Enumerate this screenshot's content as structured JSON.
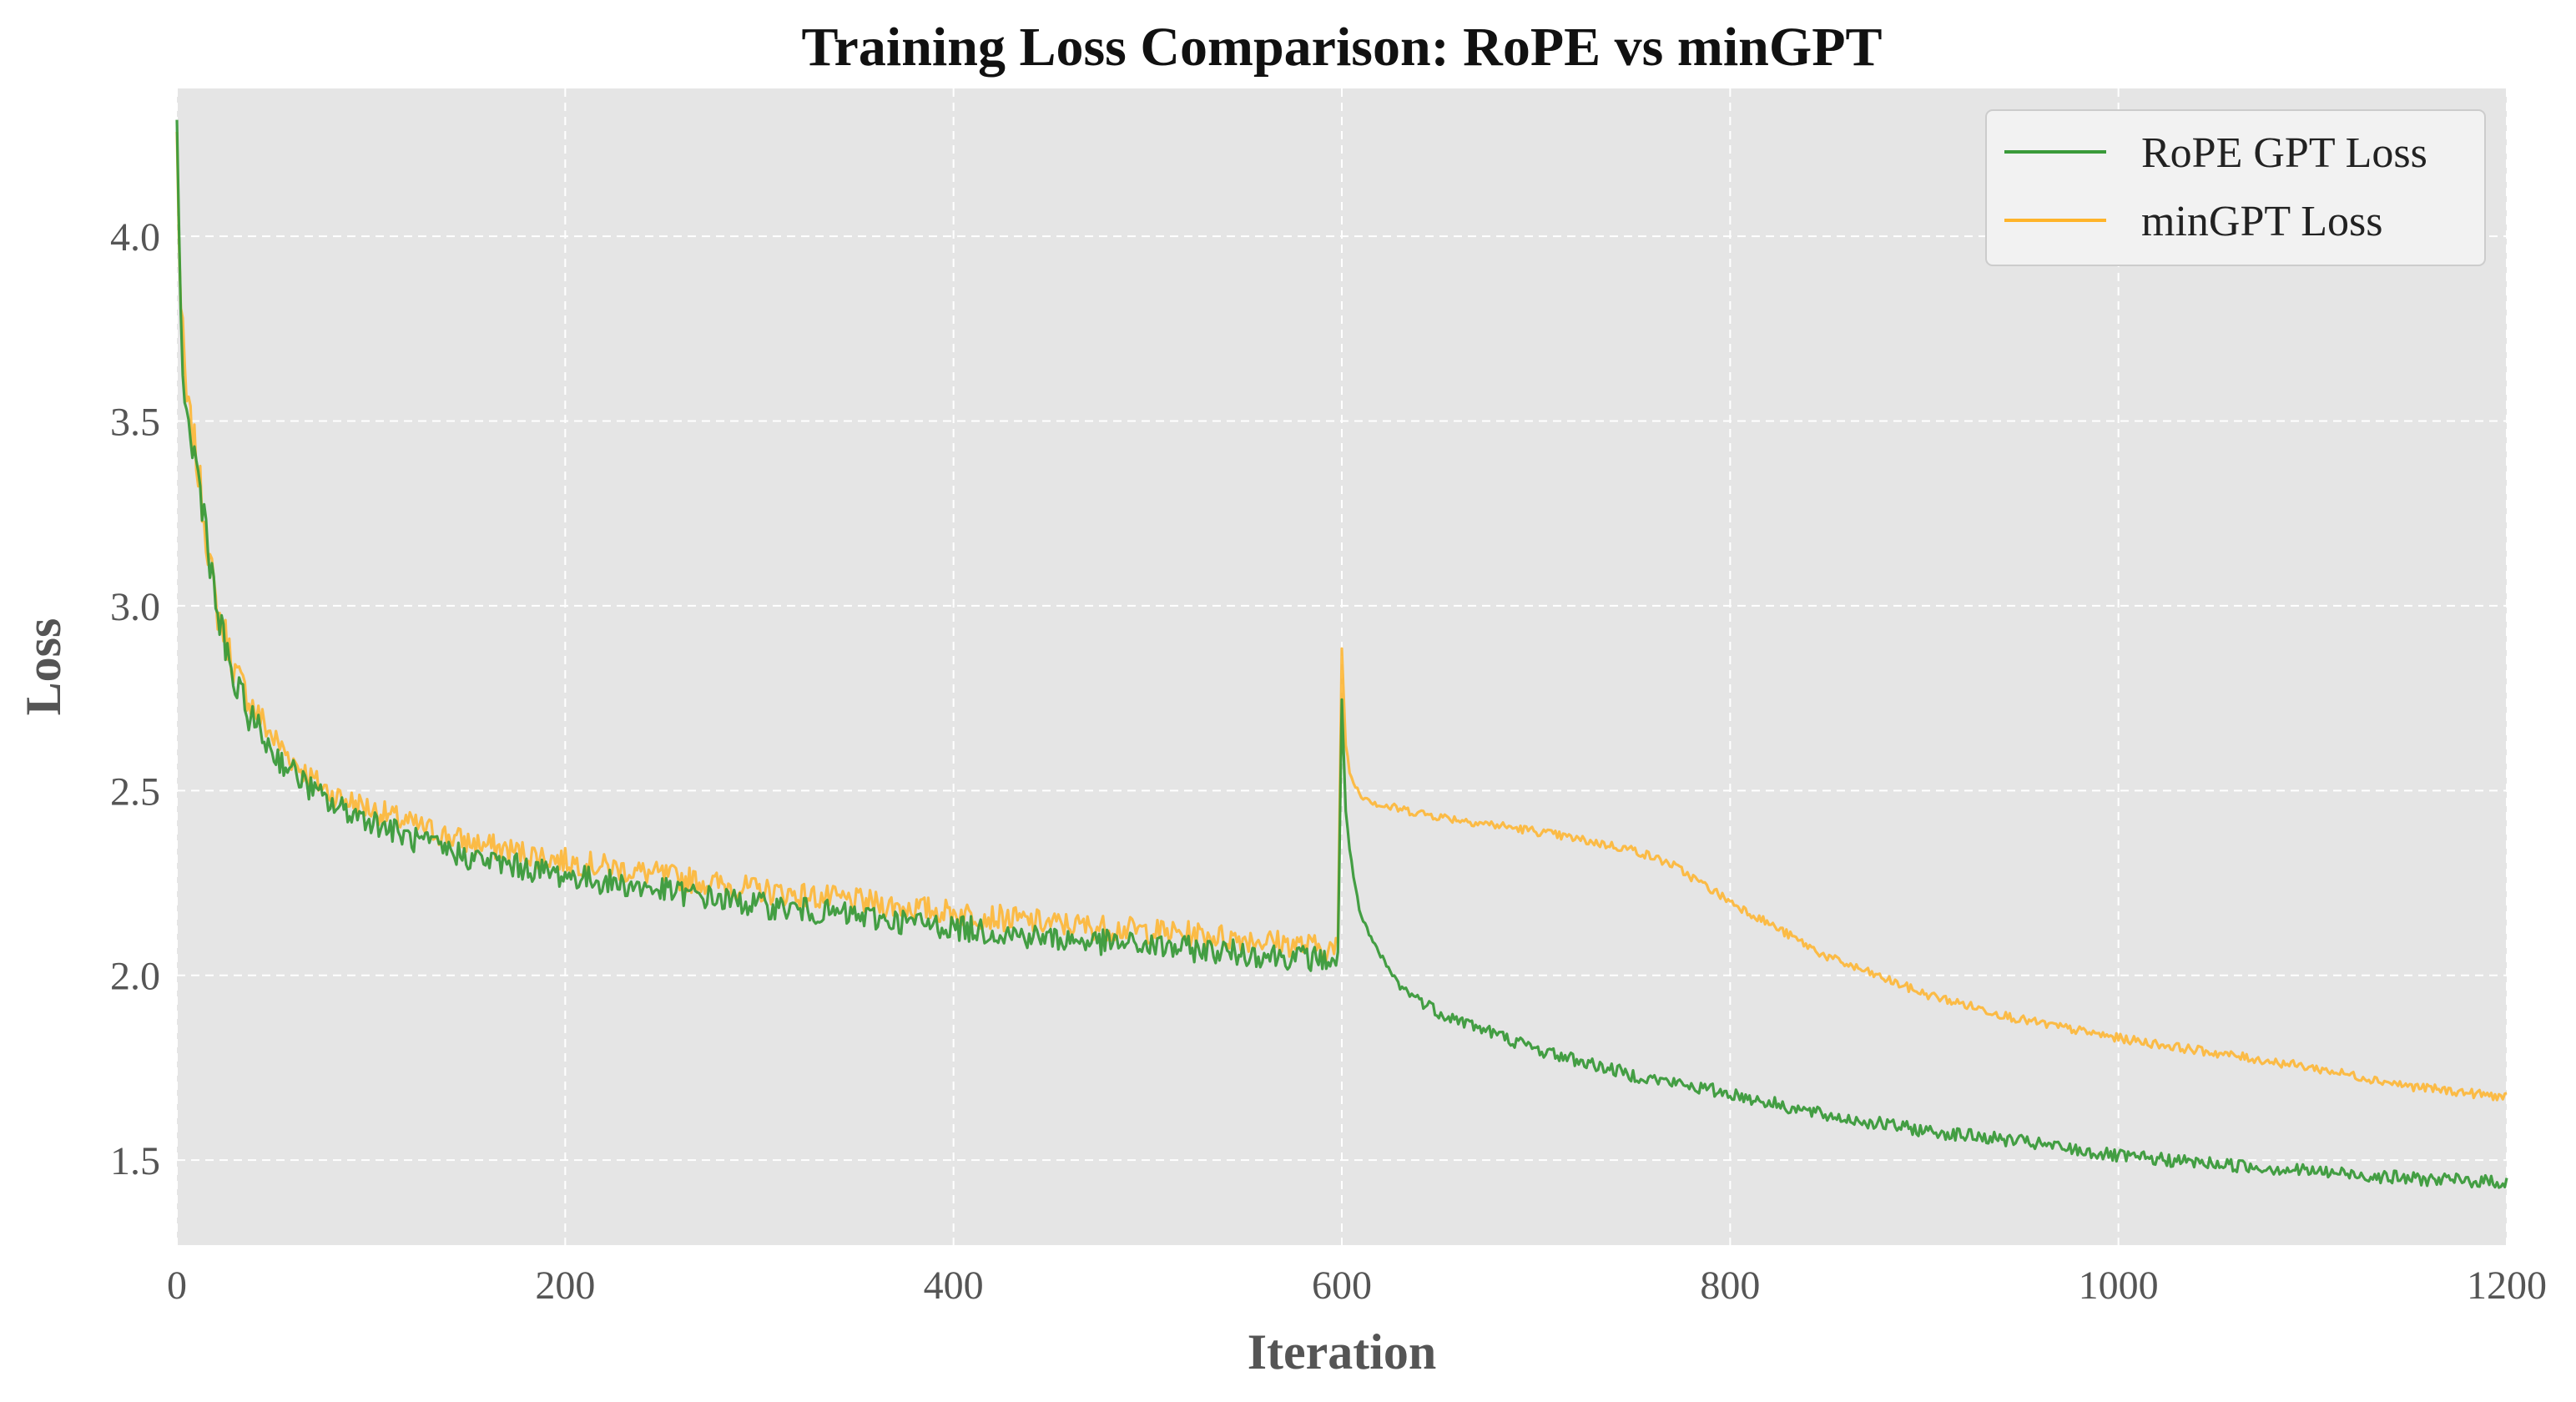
{
  "chart_data": {
    "type": "line",
    "title": "Training Loss Comparison: RoPE vs minGPT",
    "xlabel": "Iteration",
    "ylabel": "Loss",
    "xlim": [
      0,
      1200
    ],
    "ylim": [
      1.27,
      4.4
    ],
    "x_ticks": [
      0,
      200,
      400,
      600,
      800,
      1000,
      1200
    ],
    "y_ticks": [
      1.5,
      2.0,
      2.5,
      3.0,
      3.5,
      4.0
    ],
    "x_tick_labels": [
      "0",
      "200",
      "400",
      "600",
      "800",
      "1000",
      "1200"
    ],
    "y_tick_labels": [
      "1.5",
      "2.0",
      "2.5",
      "3.0",
      "3.5",
      "4.0"
    ],
    "grid": true,
    "background": "#e5e5e5",
    "legend_position": "top-right",
    "series": [
      {
        "name": "RoPE GPT Loss",
        "color": "#3a9a3a",
        "x": [
          0,
          2,
          5,
          10,
          15,
          20,
          25,
          30,
          40,
          50,
          60,
          70,
          80,
          100,
          120,
          150,
          200,
          250,
          300,
          350,
          400,
          450,
          500,
          550,
          598,
          600,
          602,
          605,
          610,
          620,
          630,
          650,
          700,
          750,
          800,
          850,
          900,
          950,
          1000,
          1050,
          1100,
          1150,
          1200
        ],
        "y": [
          4.25,
          3.75,
          3.5,
          3.38,
          3.22,
          3.0,
          2.88,
          2.78,
          2.68,
          2.6,
          2.55,
          2.5,
          2.46,
          2.42,
          2.37,
          2.32,
          2.27,
          2.23,
          2.19,
          2.16,
          2.13,
          2.1,
          2.08,
          2.06,
          2.04,
          2.74,
          2.45,
          2.3,
          2.15,
          2.05,
          1.97,
          1.9,
          1.8,
          1.73,
          1.68,
          1.62,
          1.58,
          1.55,
          1.51,
          1.49,
          1.47,
          1.45,
          1.44
        ]
      },
      {
        "name": "minGPT Loss",
        "color": "#ffb42a",
        "x": [
          0,
          2,
          5,
          10,
          15,
          20,
          25,
          30,
          40,
          50,
          60,
          70,
          80,
          100,
          120,
          150,
          200,
          250,
          300,
          350,
          400,
          450,
          500,
          550,
          598,
          600,
          602,
          605,
          610,
          620,
          650,
          700,
          750,
          770,
          800,
          850,
          900,
          950,
          1000,
          1050,
          1100,
          1150,
          1200
        ],
        "y": [
          4.27,
          3.8,
          3.55,
          3.4,
          3.2,
          3.0,
          2.92,
          2.82,
          2.72,
          2.64,
          2.58,
          2.53,
          2.49,
          2.45,
          2.41,
          2.36,
          2.31,
          2.27,
          2.23,
          2.2,
          2.17,
          2.14,
          2.12,
          2.1,
          2.07,
          2.89,
          2.62,
          2.53,
          2.49,
          2.46,
          2.43,
          2.39,
          2.34,
          2.3,
          2.2,
          2.05,
          1.95,
          1.88,
          1.83,
          1.79,
          1.75,
          1.7,
          1.67
        ]
      }
    ]
  }
}
